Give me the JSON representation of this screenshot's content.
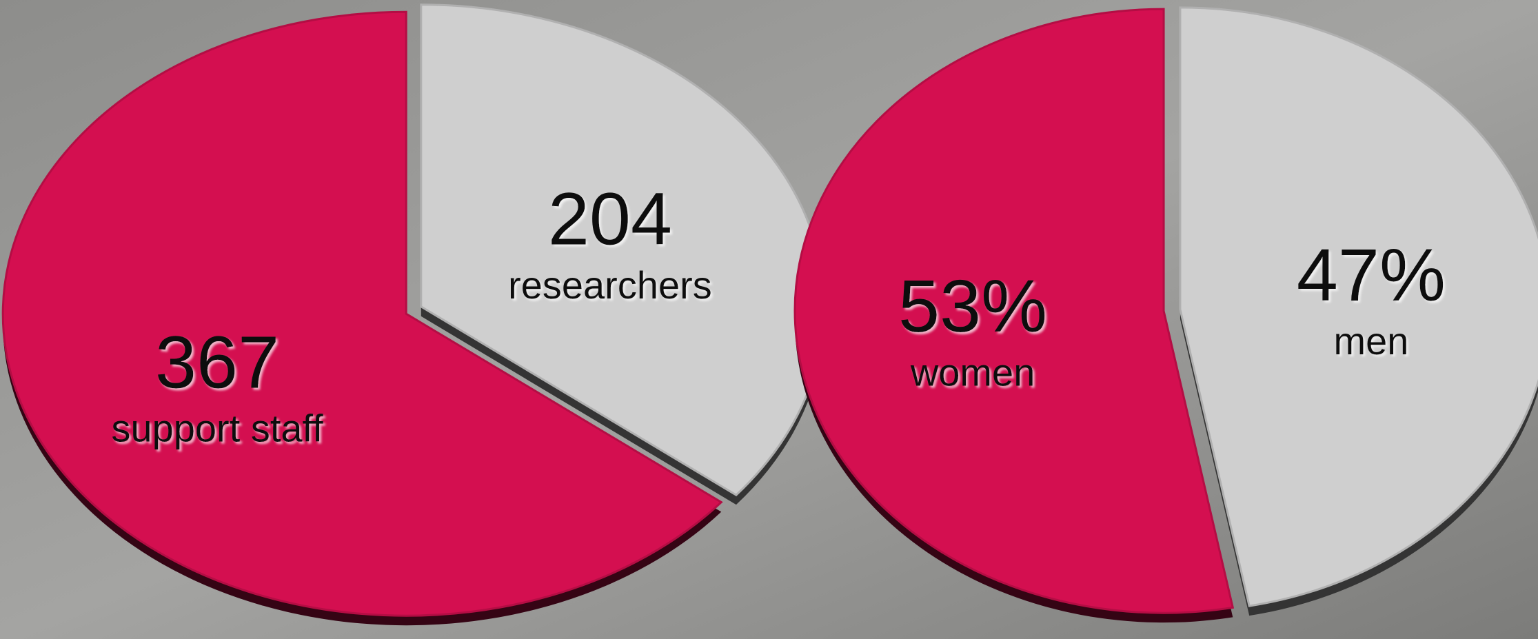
{
  "chart_data": [
    {
      "type": "pie",
      "categories": [
        "researchers",
        "support staff"
      ],
      "values": [
        204,
        367
      ],
      "colors": [
        "#cfcfcf",
        "#d40f50"
      ]
    },
    {
      "type": "pie",
      "categories": [
        "men",
        "women"
      ],
      "values": [
        47,
        53
      ],
      "value_labels": [
        "47%",
        "53%"
      ],
      "colors": [
        "#cfcfcf",
        "#d40f50"
      ]
    }
  ]
}
